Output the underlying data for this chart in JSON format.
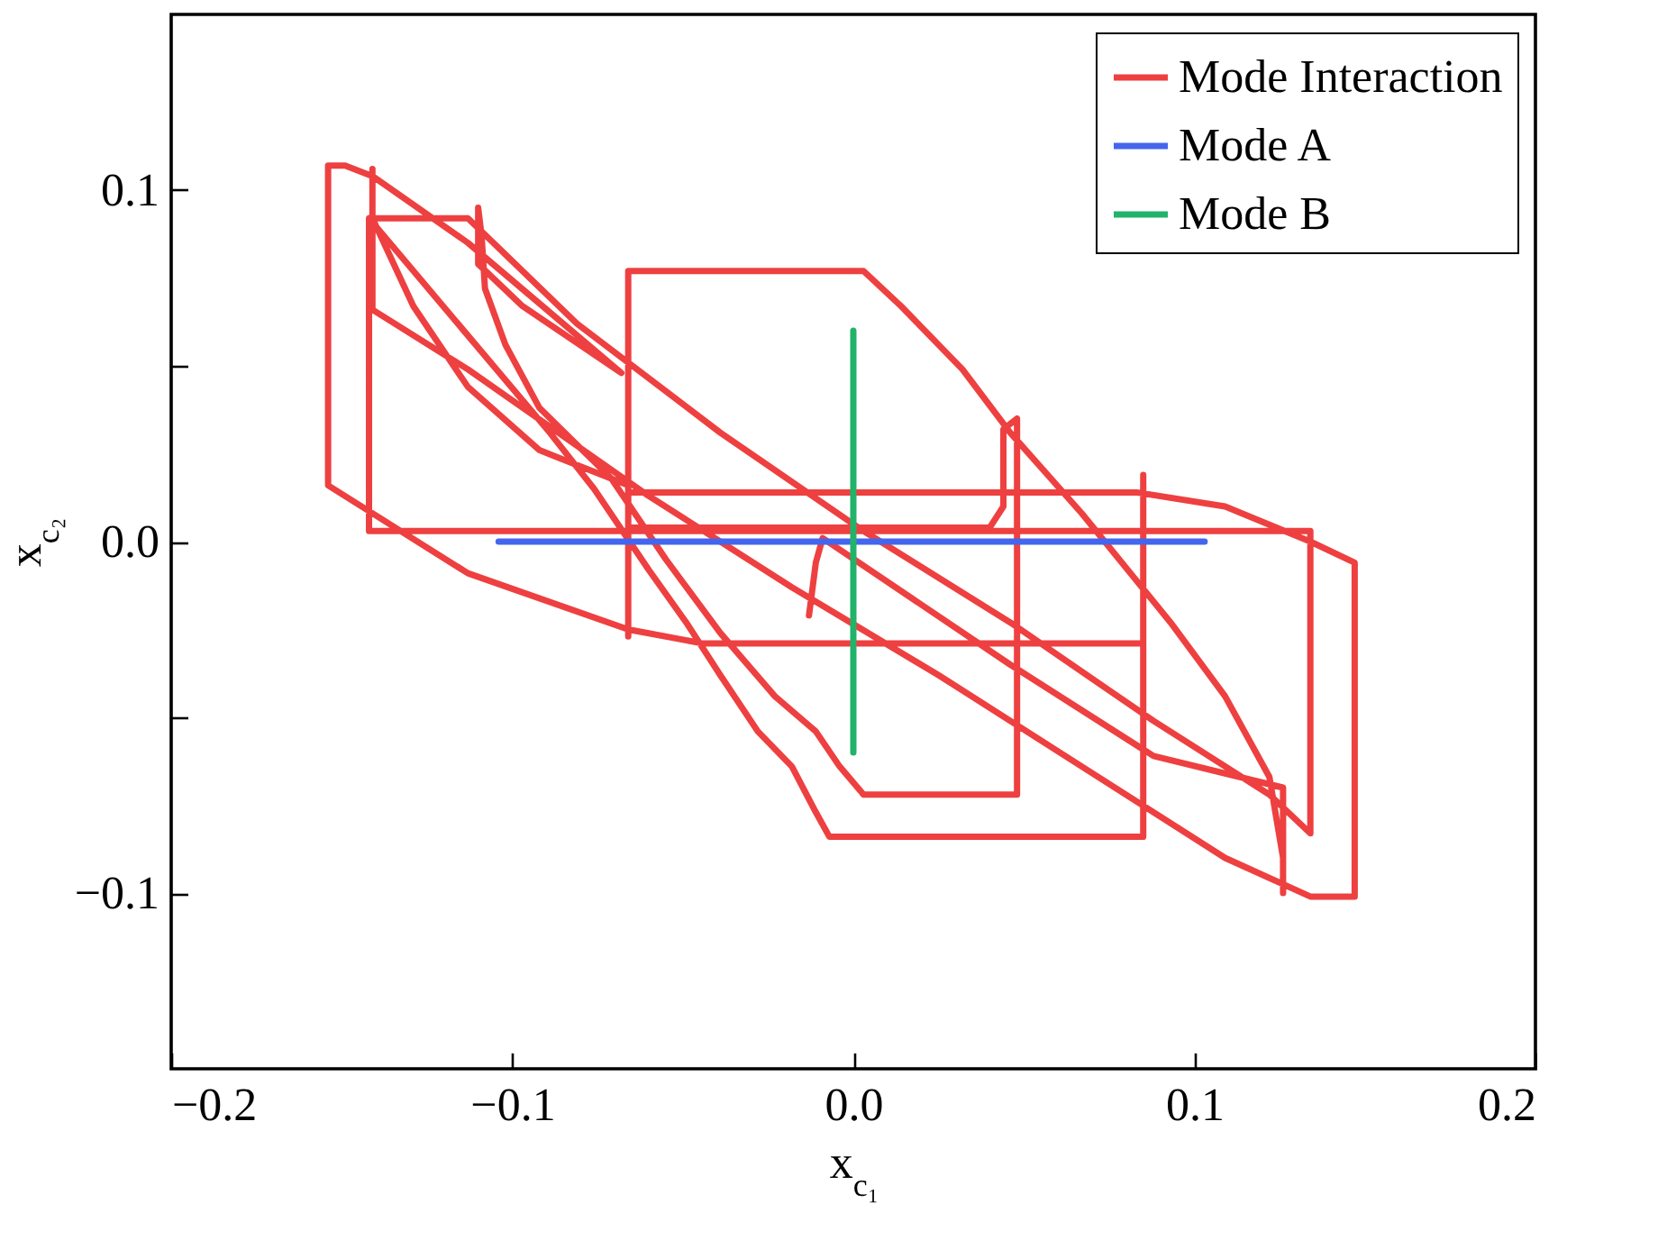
{
  "chart_data": {
    "type": "line",
    "xlabel": "x$_{c₁}$",
    "ylabel": "x$_{c₂}$",
    "xlim": [
      -0.2,
      0.2
    ],
    "ylim": [
      -0.15,
      0.15
    ],
    "xticks": [
      {
        "value": -0.2,
        "label": "−0.2"
      },
      {
        "value": -0.1,
        "label": "−0.1"
      },
      {
        "value": 0,
        "label": "0.0"
      },
      0.1,
      0.2
    ],
    "yticks": [
      {
        "value": -0.1,
        "label": "−0.1"
      },
      {
        "value": -0.05,
        "label": null
      },
      {
        "value": 0,
        "label": "0.0"
      },
      {
        "value": 0.05,
        "label": null
      },
      0.1
    ],
    "grid": false,
    "legend": "top right",
    "line_style": "solid",
    "series": [
      {
        "name": "Mode Interaction",
        "color": "#ee4040",
        "x": [
          -0.013,
          -0.011,
          -0.009,
          0.046,
          0.088,
          0.126,
          0.126,
          0.126,
          0.122,
          0.109,
          0.093,
          0.067,
          0.046,
          0.032,
          0.014,
          0.003,
          -0.066,
          -0.066,
          -0.066,
          0.083,
          0.109,
          0.134,
          0.147,
          0.147,
          0.134,
          0.109,
          0.067,
          0.025,
          -0.018,
          -0.06,
          -0.113,
          -0.141,
          -0.141,
          -0.141,
          -0.129,
          -0.113,
          -0.092,
          -0.066,
          -0.066,
          0.04,
          0.044,
          0.044,
          0.048,
          0.048,
          0.003,
          -0.004,
          -0.011,
          -0.023,
          -0.039,
          -0.055,
          -0.071,
          -0.092,
          -0.102,
          -0.108,
          -0.109,
          -0.11,
          -0.11,
          -0.097,
          -0.068,
          -0.113,
          -0.141,
          -0.149,
          -0.154,
          -0.154,
          -0.113,
          -0.066,
          -0.044,
          0.085,
          0.085,
          0.085,
          -0.007,
          -0.011,
          -0.018,
          -0.028,
          -0.039,
          -0.049,
          -0.06,
          -0.076,
          -0.089,
          -0.142,
          -0.142,
          0.134,
          0.134,
          0.122,
          0.088,
          0.046,
          0.003,
          -0.039,
          -0.081,
          -0.113,
          -0.142
        ],
        "values": [
          -0.021,
          -0.006,
          0.001,
          -0.035,
          -0.061,
          -0.07,
          -0.1,
          -0.09,
          -0.067,
          -0.044,
          -0.023,
          0.008,
          0.031,
          0.049,
          0.067,
          0.077,
          0.077,
          -0.027,
          0.014,
          0.014,
          0.01,
          0,
          -0.006,
          -0.101,
          -0.101,
          -0.09,
          -0.064,
          -0.038,
          -0.013,
          0.013,
          0.049,
          0.066,
          0.106,
          0.092,
          0.067,
          0.044,
          0.026,
          0.016,
          0.004,
          0.004,
          0.01,
          0.032,
          0.035,
          -0.072,
          -0.072,
          -0.064,
          -0.054,
          -0.044,
          -0.026,
          -0.005,
          0.018,
          0.038,
          0.056,
          0.072,
          0.087,
          0.095,
          0.079,
          0.067,
          0.048,
          0.085,
          0.104,
          0.107,
          0.107,
          0.016,
          -0.009,
          -0.025,
          -0.029,
          -0.029,
          0.019,
          -0.084,
          -0.084,
          -0.077,
          -0.064,
          -0.054,
          -0.038,
          -0.023,
          -0.008,
          0.015,
          0.031,
          0.092,
          0.003,
          0.003,
          -0.083,
          -0.072,
          -0.051,
          -0.023,
          0.003,
          0.031,
          0.062,
          0.092,
          0.092
        ]
      },
      {
        "name": "Mode A",
        "color": "#4466ee",
        "x": [
          -0.104,
          0.103
        ],
        "values": [
          0,
          0
        ]
      },
      {
        "name": "Mode B",
        "color": "#22b26a",
        "x": [
          0,
          0
        ],
        "values": [
          0.06,
          -0.06
        ]
      }
    ]
  }
}
